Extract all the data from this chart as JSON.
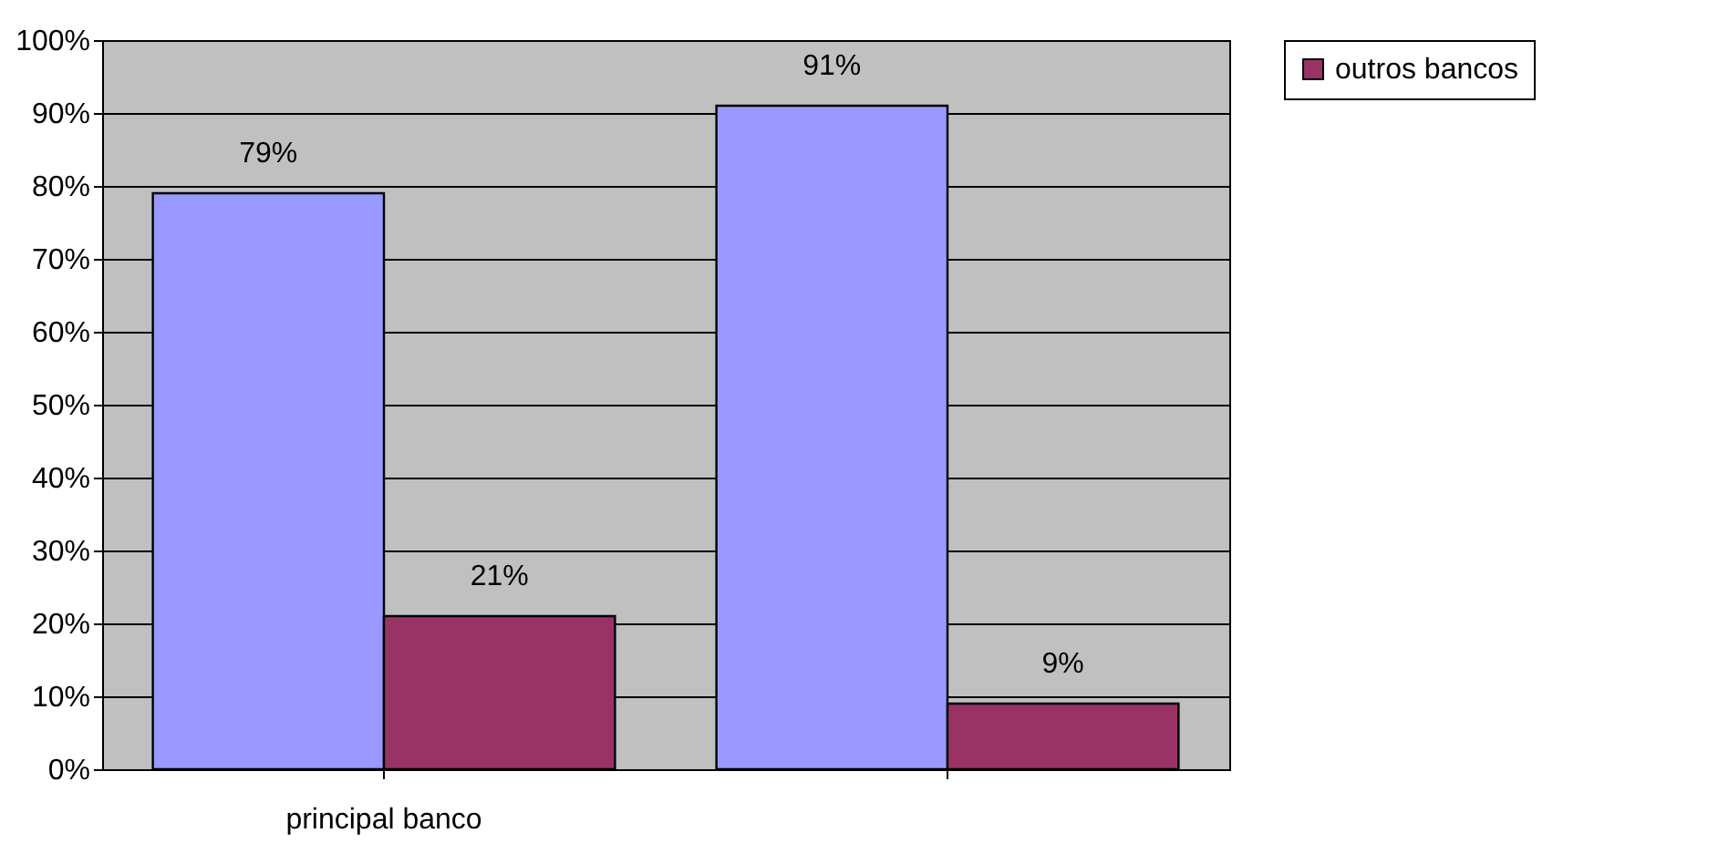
{
  "chart_data": {
    "type": "bar",
    "categories": [
      "principal banco",
      null
    ],
    "series": [
      {
        "color": "#9999ff",
        "values": [
          79,
          91
        ],
        "value_labels": [
          "79%",
          "91%"
        ]
      },
      {
        "name": "outros bancos",
        "color": "#993366",
        "values": [
          21,
          9
        ],
        "value_labels": [
          "21%",
          "9%"
        ]
      }
    ],
    "ylim": [
      0,
      100
    ],
    "yticks": [
      {
        "value": 0,
        "label": "0%"
      },
      {
        "value": 10,
        "label": "10%"
      },
      {
        "value": 20,
        "label": "20%"
      },
      {
        "value": 30,
        "label": "30%"
      },
      {
        "value": 40,
        "label": "40%"
      },
      {
        "value": 50,
        "label": "50%"
      },
      {
        "value": 60,
        "label": "60%"
      },
      {
        "value": 70,
        "label": "70%"
      },
      {
        "value": 80,
        "label": "80%"
      },
      {
        "value": 90,
        "label": "90%"
      },
      {
        "value": 100,
        "label": "100%"
      }
    ],
    "grid": "y",
    "legend": "right"
  }
}
